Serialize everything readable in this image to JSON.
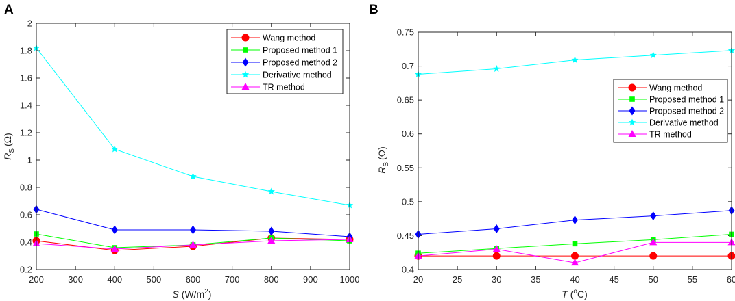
{
  "chart_data": [
    {
      "panel": "A",
      "type": "line",
      "xlabel": "S",
      "xlabel_unit_pre": " (W/m",
      "xlabel_unit_sup": "2",
      "xlabel_unit_post": ")",
      "ylabel": "R",
      "ylabel_sub": "S",
      "ylabel_unit": "(Ω)",
      "xlim": [
        200,
        1000
      ],
      "ylim": [
        0.2,
        2
      ],
      "xticks": [
        200,
        300,
        400,
        500,
        600,
        700,
        800,
        900,
        1000
      ],
      "yticks": [
        0.2,
        0.4,
        0.6,
        0.8,
        1,
        1.2,
        1.4,
        1.6,
        1.8,
        2
      ],
      "ytick_labels": [
        "0.2",
        "0.4",
        "0.6",
        "0.8",
        "1",
        "1.2",
        "1.4",
        "1.6",
        "1.8",
        "2"
      ],
      "legend_position": "top-right",
      "x": [
        200,
        400,
        600,
        800,
        1000
      ],
      "series": [
        {
          "name": "Wang method",
          "color": "#ff0000",
          "marker": "circle",
          "values": [
            0.41,
            0.34,
            0.37,
            0.43,
            0.42
          ]
        },
        {
          "name": "Proposed method 1",
          "color": "#00ff00",
          "marker": "square",
          "values": [
            0.46,
            0.36,
            0.38,
            0.43,
            0.41
          ]
        },
        {
          "name": "Proposed method 2",
          "color": "#0000ff",
          "marker": "diamond",
          "values": [
            0.64,
            0.49,
            0.49,
            0.48,
            0.44
          ]
        },
        {
          "name": "Derivative method",
          "color": "#00ffff",
          "marker": "star",
          "values": [
            1.82,
            1.08,
            0.88,
            0.77,
            0.67
          ]
        },
        {
          "name": "TR method",
          "color": "#ff00ff",
          "marker": "triangle",
          "values": [
            0.39,
            0.35,
            0.38,
            0.41,
            0.42
          ]
        }
      ]
    },
    {
      "panel": "B",
      "type": "line",
      "xlabel": "T",
      "xlabel_unit_pre": " (",
      "xlabel_unit_sup": "o",
      "xlabel_unit_post": "C)",
      "ylabel": "R",
      "ylabel_sub": "S",
      "ylabel_unit": "(Ω)",
      "xlim": [
        20,
        60
      ],
      "ylim": [
        0.4,
        0.75
      ],
      "xticks": [
        20,
        25,
        30,
        35,
        40,
        45,
        50,
        55,
        60
      ],
      "yticks": [
        0.4,
        0.45,
        0.5,
        0.55,
        0.6,
        0.65,
        0.7,
        0.75
      ],
      "ytick_labels": [
        "0.4",
        "0.45",
        "0.5",
        "0.55",
        "0.6",
        "0.65",
        "0.7",
        "0.75"
      ],
      "legend_position": "center-right",
      "x": [
        20,
        30,
        40,
        50,
        60
      ],
      "series": [
        {
          "name": "Wang method",
          "color": "#ff0000",
          "marker": "circle",
          "values": [
            0.42,
            0.42,
            0.42,
            0.42,
            0.42
          ]
        },
        {
          "name": "Proposed method 1",
          "color": "#00ff00",
          "marker": "square",
          "values": [
            0.424,
            0.431,
            0.438,
            0.444,
            0.452
          ]
        },
        {
          "name": "Proposed method 2",
          "color": "#0000ff",
          "marker": "diamond",
          "values": [
            0.452,
            0.46,
            0.473,
            0.479,
            0.487
          ]
        },
        {
          "name": "Derivative method",
          "color": "#00ffff",
          "marker": "star",
          "values": [
            0.688,
            0.696,
            0.709,
            0.716,
            0.723
          ]
        },
        {
          "name": "TR method",
          "color": "#ff00ff",
          "marker": "triangle",
          "values": [
            0.42,
            0.43,
            0.41,
            0.44,
            0.44
          ]
        }
      ]
    }
  ]
}
